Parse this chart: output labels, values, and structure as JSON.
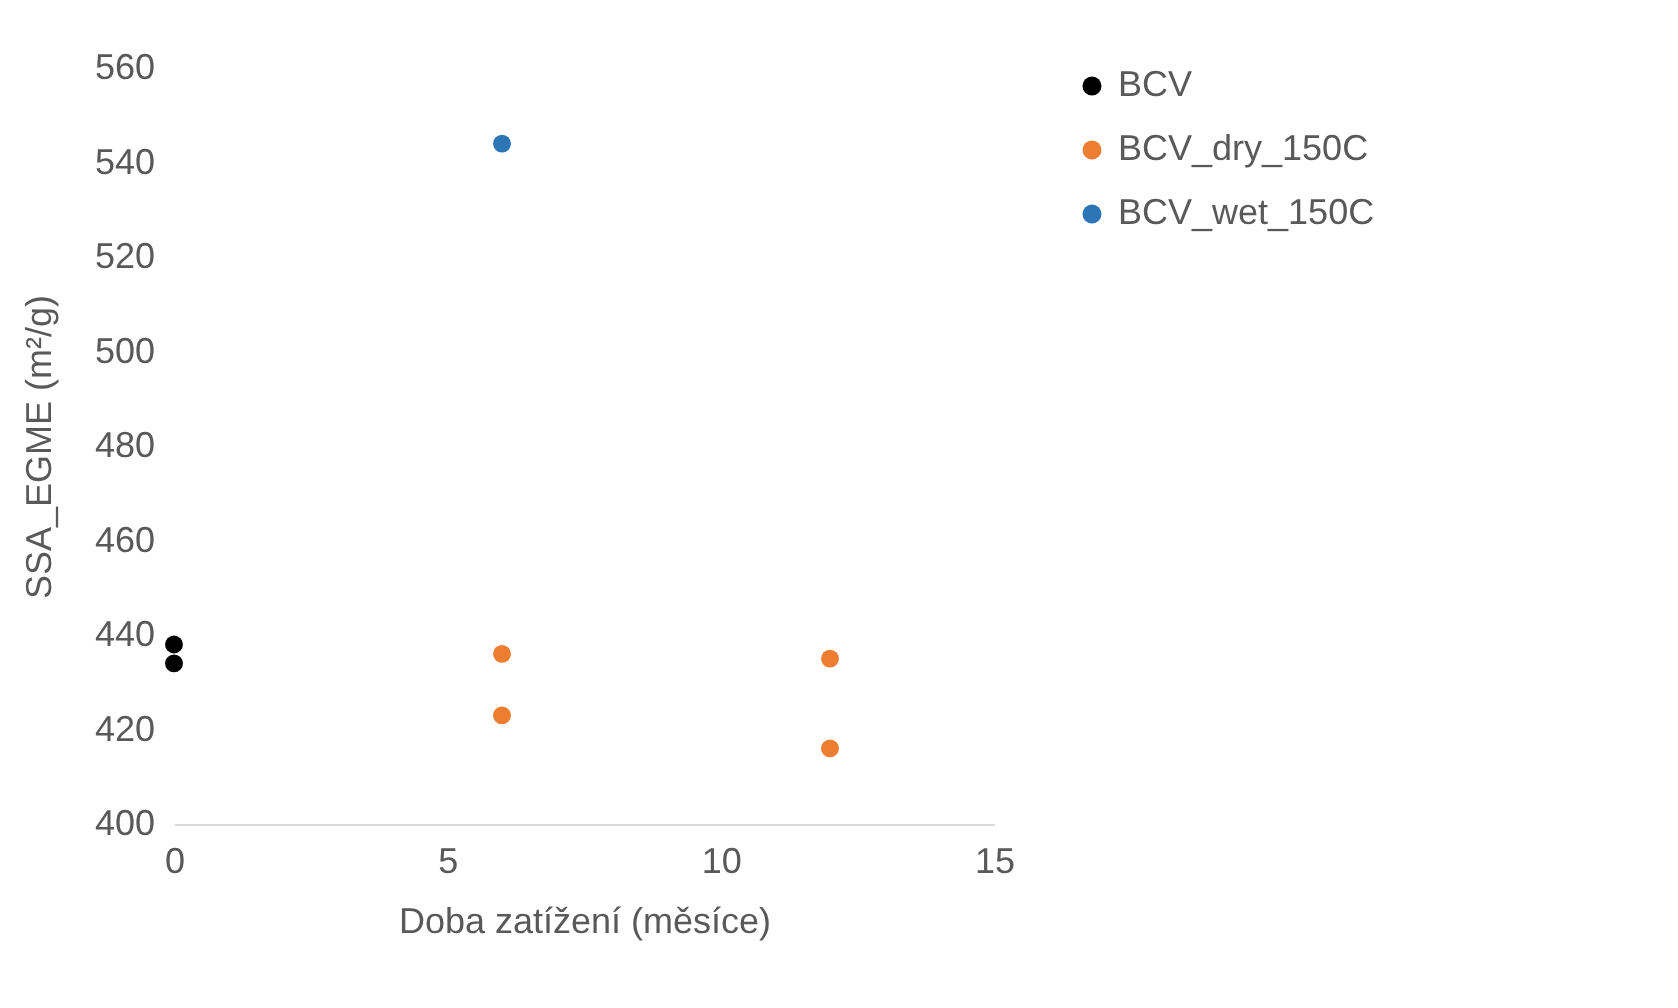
{
  "chart_data": {
    "type": "scatter",
    "xlabel": "Doba zatížení (měsíce)",
    "ylabel": "SSA_EGME (m²/g)",
    "xlim": [
      0,
      15
    ],
    "xticks": [
      0,
      5,
      10,
      15
    ],
    "ylim": [
      400,
      560
    ],
    "yticks": [
      400,
      420,
      440,
      460,
      480,
      500,
      520,
      540,
      560
    ],
    "grid": false,
    "legend": "right",
    "marker": "circle",
    "series": [
      {
        "name": "BCV",
        "color": "#000000",
        "x": [
          0,
          0
        ],
        "values": [
          438,
          434
        ]
      },
      {
        "name": "BCV_dry_150C",
        "color": "#ed7d31",
        "x": [
          6,
          6,
          12,
          12
        ],
        "values": [
          436,
          423,
          435,
          416
        ]
      },
      {
        "name": "BCV_wet_150C",
        "color": "#2e75b6",
        "x": [
          6
        ],
        "values": [
          544
        ]
      }
    ]
  }
}
